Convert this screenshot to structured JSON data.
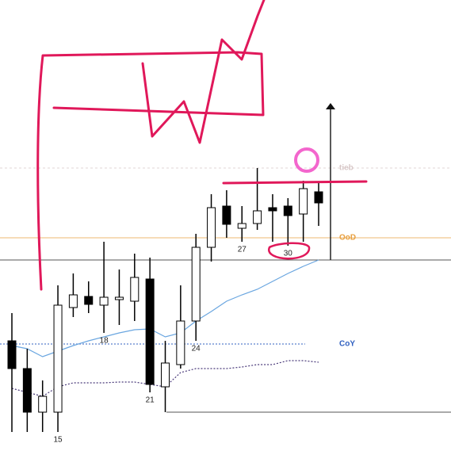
{
  "chart_data": {
    "type": "candlestick",
    "categories": [
      null,
      null,
      null,
      "15",
      null,
      null,
      "18",
      null,
      null,
      "21",
      null,
      null,
      "24",
      null,
      null,
      "27",
      null,
      null,
      "30",
      null,
      null
    ],
    "open": [
      139,
      104,
      49,
      49,
      181,
      195,
      184,
      191,
      189,
      217,
      81,
      109,
      164,
      257,
      309,
      281,
      287,
      307,
      309,
      299,
      327
    ],
    "close": [
      104,
      49,
      69,
      184,
      197,
      185,
      194,
      194,
      219,
      84,
      111,
      164,
      257,
      307,
      286,
      287,
      303,
      303,
      297,
      331,
      313
    ],
    "high": [
      174,
      129,
      89,
      209,
      224,
      214,
      264,
      229,
      249,
      244,
      139,
      209,
      274,
      324,
      329,
      309,
      357,
      324,
      319,
      341,
      339
    ],
    "low": [
      24,
      24,
      24,
      24,
      169,
      174,
      149,
      159,
      164,
      74,
      49,
      104,
      139,
      239,
      269,
      264,
      279,
      264,
      259,
      264,
      284
    ],
    "ylim": [
      0,
      569
    ],
    "up_color": "#ffffff",
    "down_color": "#000000",
    "series": [
      {
        "color": "#6aa6e0",
        "values": [
          133,
          129,
          119,
          126,
          133,
          139,
          144,
          149,
          153,
          154,
          144,
          149,
          164,
          176,
          189,
          197,
          204,
          214,
          224,
          233,
          241
        ]
      },
      {
        "color": "#4a3a7a",
        "dash": true,
        "values": [
          79,
          74,
          69,
          81,
          86,
          86,
          86,
          87,
          87,
          84,
          81,
          99,
          104,
          104,
          104,
          106,
          109,
          109,
          114,
          114,
          112
        ]
      }
    ],
    "levels": [
      {
        "value": 357,
        "label": "tieb",
        "color": "#d8c8c8"
      },
      {
        "value": 269,
        "label": "OoD",
        "color": "#e8a040"
      },
      {
        "value": 135,
        "label": "CoY",
        "color": "#3060c0"
      },
      {
        "value": 241,
        "color": "#555555"
      },
      {
        "value": 49,
        "color": "#555555"
      }
    ]
  }
}
